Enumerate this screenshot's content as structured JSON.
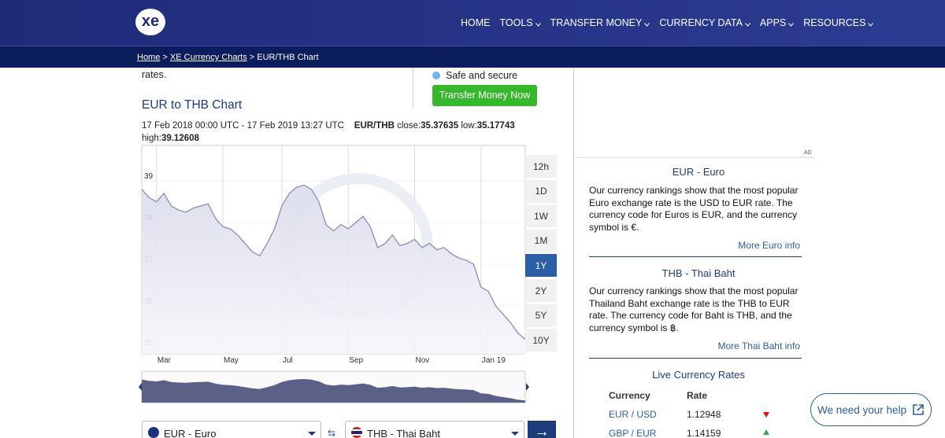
{
  "nav": {
    "logo": "xe",
    "items": [
      "HOME",
      "TOOLS",
      "TRANSFER MONEY",
      "CURRENCY DATA",
      "APPS",
      "RESOURCES"
    ]
  },
  "breadcrumb": {
    "items": [
      "Home",
      "XE Currency Charts",
      "EUR/THB Chart"
    ],
    "separator": ">"
  },
  "intro_tail": "rates.",
  "transfer": {
    "feature": "Safe and secure",
    "button": "Transfer Money Now"
  },
  "chart_header": {
    "range": "17 Feb 2018 00:00 UTC - 17 Feb 2019 13:27 UTC",
    "pair": "EUR/THB",
    "close_label": "close:",
    "close": 35.37635,
    "low_label": "low:",
    "low": 35.17743,
    "high_label": "high:",
    "high": 39.12608
  },
  "chart_data": {
    "type": "line",
    "title": "EUR to THB Chart",
    "categories": [
      null,
      null,
      "Mar",
      null,
      null,
      null,
      null,
      null,
      null,
      null,
      null,
      "May",
      null,
      null,
      null,
      null,
      null,
      null,
      null,
      "Jul",
      null,
      null,
      null,
      null,
      null,
      null,
      null,
      null,
      "Sep",
      null,
      null,
      null,
      null,
      null,
      null,
      null,
      null,
      "Nov",
      null,
      null,
      null,
      null,
      null,
      null,
      null,
      null,
      "Jan 19",
      null,
      null,
      null,
      null,
      null,
      null
    ],
    "values": [
      38.8,
      38.6,
      38.5,
      38.7,
      38.4,
      38.3,
      38.25,
      38.35,
      38.4,
      38.45,
      38.1,
      37.9,
      37.85,
      37.7,
      37.5,
      37.3,
      37.2,
      37.5,
      37.85,
      38.4,
      38.7,
      38.85,
      38.9,
      38.8,
      38.5,
      37.95,
      37.8,
      37.95,
      37.85,
      38.0,
      38.15,
      37.9,
      37.4,
      37.5,
      37.7,
      37.45,
      37.5,
      37.6,
      37.4,
      37.5,
      37.35,
      37.4,
      37.25,
      37.15,
      37.1,
      37.0,
      36.45,
      36.35,
      36.0,
      35.8,
      35.6,
      35.35,
      35.2
    ],
    "ylim": [
      34.85,
      39.85
    ],
    "yticks": [
      35,
      36,
      37,
      38,
      39
    ],
    "grid": true,
    "color": "#8a8fb5"
  },
  "timeframes": {
    "options": [
      "12h",
      "1D",
      "1W",
      "1M",
      "1Y",
      "2Y",
      "5Y",
      "10Y"
    ],
    "active": 4
  },
  "converter": {
    "from": "EUR - Euro",
    "to": "THB - Thai Baht"
  },
  "ad_label": "AD",
  "info": [
    {
      "title": "EUR - Euro",
      "body": "Our currency rankings show that the most popular Euro exchange rate is the USD to EUR rate. The currency code for Euros is EUR, and the currency symbol is €.",
      "link": "More Euro info"
    },
    {
      "title": "THB - Thai Baht",
      "body": "Our currency rankings show that the most popular Thailand Baht exchange rate is the THB to EUR rate. The currency code for Baht is THB, and the currency symbol is ฿.",
      "link": "More Thai Baht info"
    }
  ],
  "live_rates": {
    "title": "Live Currency Rates",
    "headers": [
      "Currency",
      "Rate"
    ],
    "rows": [
      {
        "pair": "EUR / USD",
        "rate": 1.12948,
        "trend": "down"
      },
      {
        "pair": "GBP / EUR",
        "rate": 1.14159,
        "trend": "up"
      }
    ]
  },
  "help": "We need your help"
}
